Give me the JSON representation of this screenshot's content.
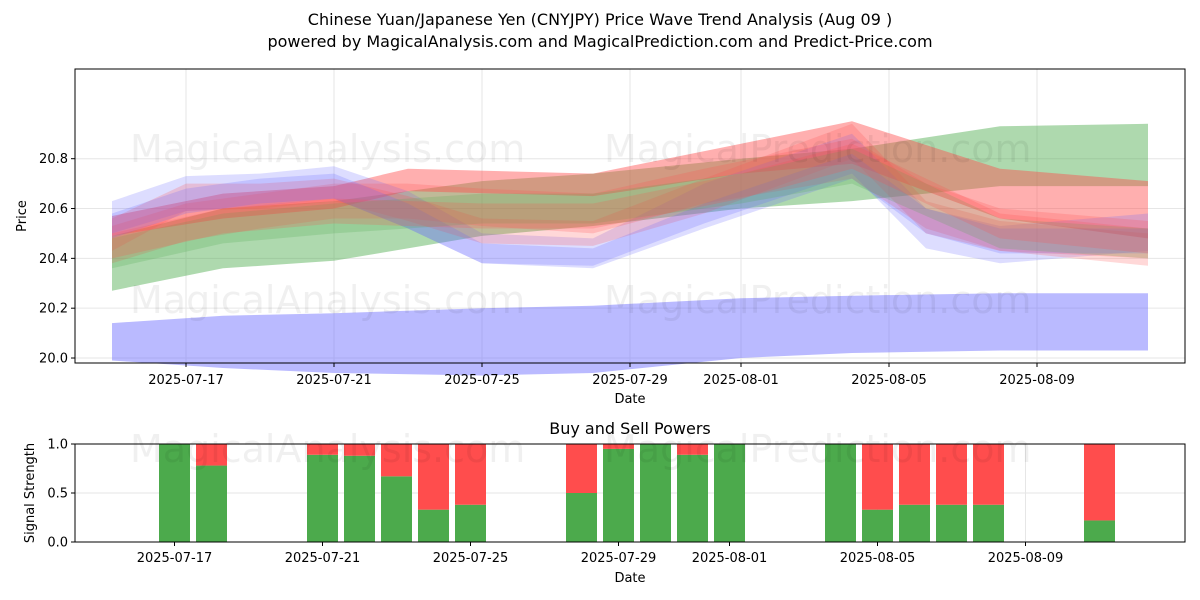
{
  "title": "Chinese Yuan/Japanese Yen (CNYJPY) Price Wave Trend Analysis (Aug 09 )",
  "subtitle": "powered by MagicalAnalysis.com and MagicalPrediction.com and Predict-Price.com",
  "watermarks": [
    "MagicalAnalysis.com",
    "MagicalPrediction.com"
  ],
  "colors": {
    "green": "#4caa4c",
    "red": "#ff4d4d",
    "blue": "#6666ff",
    "grid": "#e6e6e6"
  },
  "chart_data": [
    {
      "type": "area",
      "title": "",
      "xlabel": "Date",
      "ylabel": "Price",
      "x_tick_labels": [
        "2025-07-17",
        "2025-07-21",
        "2025-07-25",
        "2025-07-29",
        "2025-08-01",
        "2025-08-05",
        "2025-08-09"
      ],
      "y_ticks": [
        20.0,
        20.2,
        20.4,
        20.6,
        20.8
      ],
      "xlim": [
        "2025-07-14",
        "2025-08-13"
      ],
      "ylim": [
        19.98,
        21.16
      ],
      "grid": true,
      "bands": [
        {
          "color": "blue",
          "x": [
            "2025-07-15",
            "2025-07-18",
            "2025-07-21",
            "2025-07-25",
            "2025-07-28",
            "2025-08-01",
            "2025-08-04",
            "2025-08-08",
            "2025-08-12"
          ],
          "upper": [
            20.14,
            20.17,
            20.18,
            20.2,
            20.21,
            20.24,
            20.25,
            20.26,
            20.26
          ],
          "lower": [
            19.99,
            19.96,
            19.94,
            19.93,
            19.94,
            20.0,
            20.02,
            20.03,
            20.03
          ]
        },
        {
          "color": "green",
          "x": [
            "2025-07-15",
            "2025-07-18",
            "2025-07-21",
            "2025-07-25",
            "2025-07-28",
            "2025-08-01",
            "2025-08-04",
            "2025-08-08",
            "2025-08-12"
          ],
          "upper": [
            20.49,
            20.6,
            20.63,
            20.71,
            20.74,
            20.8,
            20.84,
            20.93,
            20.94
          ],
          "lower": [
            20.27,
            20.36,
            20.39,
            20.49,
            20.53,
            20.6,
            20.63,
            20.69,
            20.69
          ]
        },
        {
          "color": "red",
          "x": [
            "2025-07-15",
            "2025-07-18",
            "2025-07-21",
            "2025-07-23",
            "2025-07-28",
            "2025-08-01",
            "2025-08-04",
            "2025-08-08",
            "2025-08-12"
          ],
          "upper": [
            20.57,
            20.66,
            20.69,
            20.76,
            20.74,
            20.86,
            20.95,
            20.76,
            20.71
          ],
          "lower": [
            20.49,
            20.56,
            20.6,
            20.67,
            20.65,
            20.74,
            20.78,
            20.56,
            20.48
          ]
        },
        {
          "color": "blue",
          "x": [
            "2025-07-15",
            "2025-07-17",
            "2025-07-19",
            "2025-07-21",
            "2025-07-23",
            "2025-07-25",
            "2025-07-28",
            "2025-07-31",
            "2025-08-04",
            "2025-08-06",
            "2025-08-08",
            "2025-08-12"
          ],
          "upper": [
            20.63,
            20.73,
            20.74,
            20.77,
            20.67,
            20.5,
            20.48,
            20.7,
            20.9,
            20.6,
            20.53,
            20.58
          ],
          "lower": [
            20.5,
            20.59,
            20.61,
            20.64,
            20.52,
            20.38,
            20.37,
            20.54,
            20.74,
            20.44,
            20.38,
            20.43
          ]
        },
        {
          "color": "red",
          "x": [
            "2025-07-15",
            "2025-07-17",
            "2025-07-19",
            "2025-07-21",
            "2025-07-23",
            "2025-07-25",
            "2025-07-28",
            "2025-07-31",
            "2025-08-04",
            "2025-08-06",
            "2025-08-08",
            "2025-08-12"
          ],
          "upper": [
            20.56,
            20.7,
            20.7,
            20.72,
            20.65,
            20.56,
            20.55,
            20.72,
            20.94,
            20.63,
            20.55,
            20.5
          ],
          "lower": [
            20.43,
            20.59,
            20.6,
            20.63,
            20.55,
            20.46,
            20.45,
            20.58,
            20.8,
            20.5,
            20.43,
            20.37
          ]
        },
        {
          "color": "red",
          "x": [
            "2025-07-15",
            "2025-07-17",
            "2025-07-19",
            "2025-07-21",
            "2025-07-23",
            "2025-07-25",
            "2025-07-28",
            "2025-07-31",
            "2025-08-04",
            "2025-08-06",
            "2025-08-08",
            "2025-08-12"
          ],
          "upper": [
            20.53,
            20.62,
            20.66,
            20.7,
            20.7,
            20.68,
            20.66,
            20.76,
            20.88,
            20.7,
            20.6,
            20.55
          ],
          "lower": [
            20.38,
            20.47,
            20.52,
            20.56,
            20.56,
            20.53,
            20.5,
            20.62,
            20.72,
            20.52,
            20.43,
            20.4
          ]
        },
        {
          "color": "blue",
          "x": [
            "2025-07-15",
            "2025-07-17",
            "2025-07-19",
            "2025-07-21",
            "2025-07-23",
            "2025-07-25",
            "2025-07-28",
            "2025-07-31",
            "2025-08-04",
            "2025-08-06",
            "2025-08-08",
            "2025-08-12"
          ],
          "upper": [
            20.58,
            20.68,
            20.72,
            20.74,
            20.62,
            20.46,
            20.44,
            20.62,
            20.82,
            20.6,
            20.52,
            20.52
          ],
          "lower": [
            20.48,
            20.58,
            20.62,
            20.64,
            20.52,
            20.38,
            20.36,
            20.52,
            20.72,
            20.5,
            20.42,
            20.42
          ]
        },
        {
          "color": "green",
          "x": [
            "2025-07-15",
            "2025-07-18",
            "2025-07-21",
            "2025-07-25",
            "2025-07-28",
            "2025-08-01",
            "2025-08-04",
            "2025-08-08",
            "2025-08-12"
          ],
          "upper": [
            20.48,
            20.58,
            20.62,
            20.66,
            20.66,
            20.74,
            20.84,
            20.56,
            20.52
          ],
          "lower": [
            20.36,
            20.46,
            20.5,
            20.54,
            20.54,
            20.62,
            20.7,
            20.44,
            20.4
          ]
        },
        {
          "color": "red",
          "x": [
            "2025-07-15",
            "2025-07-18",
            "2025-07-21",
            "2025-07-25",
            "2025-07-28",
            "2025-08-01",
            "2025-08-04",
            "2025-08-08",
            "2025-08-12"
          ],
          "upper": [
            20.5,
            20.6,
            20.64,
            20.62,
            20.62,
            20.74,
            20.86,
            20.58,
            20.52
          ],
          "lower": [
            20.4,
            20.5,
            20.54,
            20.52,
            20.52,
            20.64,
            20.76,
            20.48,
            20.42
          ]
        }
      ]
    },
    {
      "type": "bar",
      "title": "Buy and Sell Powers",
      "xlabel": "Date",
      "ylabel": "Signal Strength",
      "x_tick_labels": [
        "2025-07-17",
        "2025-07-21",
        "2025-07-25",
        "2025-07-29",
        "2025-08-01",
        "2025-08-05",
        "2025-08-09"
      ],
      "y_tick_labels": [
        "0.0",
        "0.5",
        "1.0"
      ],
      "ylim": [
        0,
        1
      ],
      "grid": true,
      "categories": [
        "2025-07-17",
        "2025-07-18",
        "2025-07-21",
        "2025-07-22",
        "2025-07-23",
        "2025-07-24",
        "2025-07-25",
        "2025-07-28",
        "2025-07-29",
        "2025-07-30",
        "2025-07-31",
        "2025-08-01",
        "2025-08-04",
        "2025-08-05",
        "2025-08-06",
        "2025-08-07",
        "2025-08-08",
        "2025-08-11"
      ],
      "series": [
        {
          "name": "",
          "color": "green",
          "values": [
            1.0,
            0.78,
            0.89,
            0.88,
            0.67,
            0.33,
            0.38,
            0.5,
            0.95,
            1.0,
            0.89,
            1.0,
            1.0,
            0.33,
            0.38,
            0.38,
            0.38,
            0.22
          ]
        },
        {
          "name": "",
          "color": "red",
          "values": [
            0.0,
            0.22,
            0.11,
            0.12,
            0.33,
            0.67,
            0.62,
            0.5,
            0.05,
            0.0,
            0.11,
            0.0,
            0.0,
            0.67,
            0.62,
            0.62,
            0.62,
            0.78
          ]
        }
      ]
    }
  ]
}
